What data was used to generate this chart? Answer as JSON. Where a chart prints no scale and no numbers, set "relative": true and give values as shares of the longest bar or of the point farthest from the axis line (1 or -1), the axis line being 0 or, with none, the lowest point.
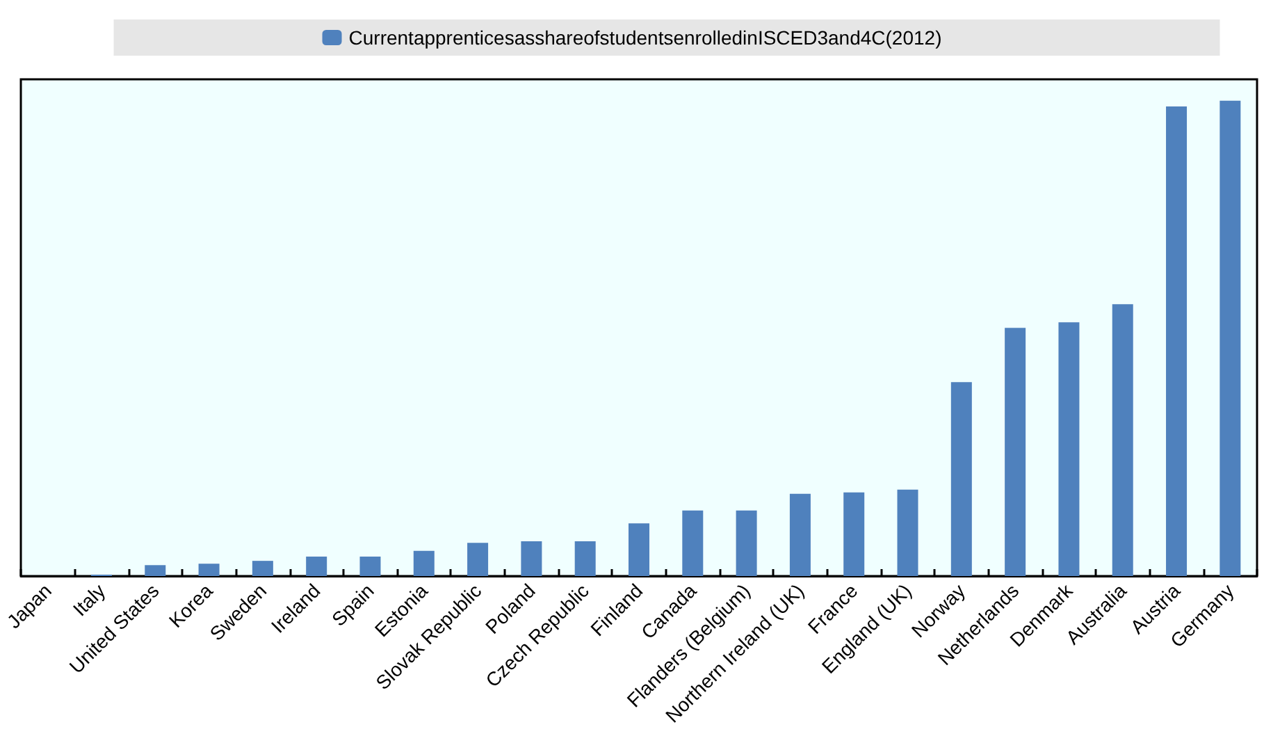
{
  "chart_data": {
    "type": "bar",
    "relative": true,
    "legend": "top",
    "grid": false,
    "categories": [
      "Japan",
      "Italy",
      "United States",
      "Korea",
      "Sweden",
      "Ireland",
      "Spain",
      "Estonia",
      "Slovak Republic",
      "Poland",
      "Czech Republic",
      "Finland",
      "Canada",
      "Flanders (Belgium)",
      "Northern Ireland (UK)",
      "France",
      "England (UK)",
      "Norway",
      "Netherlands",
      "Denmark",
      "Australia",
      "Austria",
      "Germany"
    ],
    "series": [
      {
        "name": "CurrentapprenticesasshareofstudentsenrolledinISCED3and4C(2012)",
        "color": "#4f81bd",
        "values": [
          null,
          0.003,
          0.023,
          0.026,
          0.032,
          0.041,
          0.041,
          0.053,
          0.07,
          0.073,
          0.073,
          0.111,
          0.138,
          0.138,
          0.173,
          0.176,
          0.182,
          0.408,
          0.522,
          0.534,
          0.572,
          0.988,
          1
        ]
      }
    ]
  }
}
